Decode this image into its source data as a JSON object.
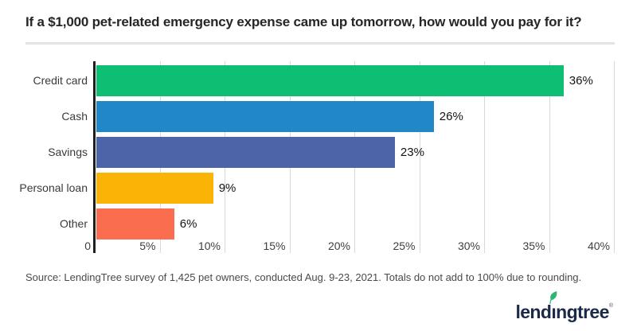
{
  "title": "If a $1,000 pet-related emergency expense came up tomorrow, how would you pay for it?",
  "source": "Source: LendingTree survey of 1,425 pet owners, conducted Aug. 9-23, 2021. Totals do not add to 100% due to rounding.",
  "logo": {
    "brand": "LendingTree",
    "part1": "lend",
    "dotless_i": "ı",
    "part2": "ngtree",
    "registered_mark": "®",
    "leaf_color": "#2bb673",
    "text_color": "#1b2a47"
  },
  "chart_data": {
    "type": "bar",
    "orientation": "horizontal",
    "title": "If a $1,000 pet-related emergency expense came up tomorrow, how would you pay for it?",
    "categories": [
      "Credit card",
      "Cash",
      "Savings",
      "Personal loan",
      "Other"
    ],
    "values": [
      36,
      26,
      23,
      9,
      6
    ],
    "value_labels": [
      "36%",
      "26%",
      "23%",
      "9%",
      "6%"
    ],
    "bar_colors": [
      "#0dbe73",
      "#2187c6",
      "#4d64a8",
      "#f9b405",
      "#fb6d4f"
    ],
    "x_tick_labels": [
      "0",
      "5%",
      "10%",
      "15%",
      "20%",
      "25%",
      "30%",
      "35%",
      "40%"
    ],
    "x_tick_values": [
      0,
      5,
      10,
      15,
      20,
      25,
      30,
      35,
      40
    ],
    "xlim": [
      0,
      40
    ],
    "xlabel": "",
    "ylabel": "",
    "grid": true,
    "legend": false,
    "gridline_color": "#d9d9d9",
    "axis_color": "#1f1f1f",
    "value_label_position": "outside-end"
  }
}
